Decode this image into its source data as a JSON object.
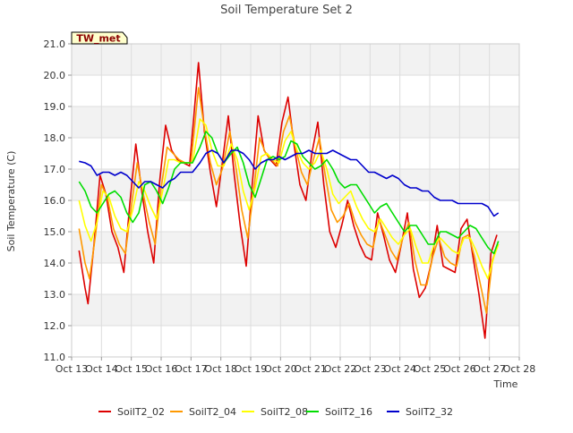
{
  "colors": {
    "background": "#ffffff",
    "band": "#f2f2f2",
    "grid": "#dddddd",
    "axis": "#cccccc",
    "station_tag_fill": "#ffffcc",
    "station_tag_text": "#8b0000"
  },
  "chart_data": {
    "type": "line",
    "title": "Soil Temperature Set 2",
    "xlabel": "Time",
    "ylabel": "Soil Temperature (C)",
    "station_tag": "TW_met",
    "xlim": [
      "Oct 13",
      "Oct 28"
    ],
    "ylim": [
      11.0,
      21.0
    ],
    "xticks": [
      "Oct 13",
      "Oct 14",
      "Oct 15",
      "Oct 16",
      "Oct 17",
      "Oct 18",
      "Oct 19",
      "Oct 20",
      "Oct 21",
      "Oct 22",
      "Oct 23",
      "Oct 24",
      "Oct 25",
      "Oct 26",
      "Oct 27",
      "Oct 28"
    ],
    "yticks": [
      "11.0",
      "12.0",
      "13.0",
      "14.0",
      "15.0",
      "16.0",
      "17.0",
      "18.0",
      "19.0",
      "20.0",
      "21.0"
    ],
    "grid": true,
    "legend_position": "bottom",
    "series": [
      {
        "name": "SoilT2_02",
        "color": "#dd0000",
        "x": [
          13.25,
          13.45,
          13.55,
          13.75,
          13.95,
          14.15,
          14.35,
          14.55,
          14.75,
          14.95,
          15.15,
          15.35,
          15.55,
          15.75,
          15.95,
          16.15,
          16.35,
          16.55,
          16.75,
          16.95,
          17.25,
          17.45,
          17.65,
          17.85,
          18.05,
          18.25,
          18.45,
          18.65,
          18.85,
          19.05,
          19.25,
          19.45,
          19.65,
          19.85,
          20.05,
          20.25,
          20.45,
          20.65,
          20.85,
          21.05,
          21.25,
          21.45,
          21.65,
          21.85,
          22.05,
          22.25,
          22.45,
          22.65,
          22.85,
          23.05,
          23.25,
          23.45,
          23.65,
          23.85,
          24.05,
          24.25,
          24.45,
          24.65,
          24.85,
          25.05,
          25.25,
          25.45,
          25.65,
          25.85,
          26.05,
          26.25,
          26.45,
          26.65,
          26.85,
          27.05,
          27.25
        ],
        "y": [
          14.4,
          13.2,
          12.7,
          14.6,
          16.8,
          16.2,
          15.0,
          14.5,
          13.7,
          15.9,
          17.8,
          16.3,
          15.0,
          14.0,
          16.6,
          18.4,
          17.6,
          17.3,
          17.2,
          17.1,
          20.4,
          18.2,
          16.9,
          15.8,
          17.2,
          18.7,
          16.8,
          15.2,
          13.9,
          16.5,
          18.7,
          17.6,
          17.3,
          17.1,
          18.5,
          19.3,
          17.8,
          16.5,
          16.0,
          17.5,
          18.5,
          16.5,
          15.0,
          14.5,
          15.2,
          16.0,
          15.2,
          14.6,
          14.2,
          14.1,
          15.6,
          14.9,
          14.1,
          13.7,
          14.6,
          15.6,
          13.8,
          12.9,
          13.2,
          14.0,
          15.2,
          13.9,
          13.8,
          13.7,
          15.1,
          15.4,
          14.2,
          13.0,
          11.6,
          14.3,
          14.9
        ]
      },
      {
        "name": "SoilT2_04",
        "color": "#ff9900",
        "x": [
          13.25,
          13.45,
          13.6,
          13.8,
          14.0,
          14.2,
          14.4,
          14.6,
          14.8,
          15.0,
          15.2,
          15.4,
          15.6,
          15.8,
          16.0,
          16.2,
          16.4,
          16.6,
          16.8,
          17.0,
          17.25,
          17.45,
          17.65,
          17.85,
          18.05,
          18.3,
          18.5,
          18.7,
          18.9,
          19.1,
          19.3,
          19.5,
          19.7,
          19.9,
          20.1,
          20.3,
          20.5,
          20.7,
          20.9,
          21.1,
          21.3,
          21.5,
          21.7,
          21.9,
          22.1,
          22.3,
          22.5,
          22.7,
          22.9,
          23.1,
          23.3,
          23.5,
          23.7,
          23.9,
          24.1,
          24.3,
          24.5,
          24.7,
          24.9,
          25.1,
          25.3,
          25.5,
          25.7,
          25.9,
          26.1,
          26.3,
          26.5,
          26.7,
          26.9,
          27.1,
          27.3
        ],
        "y": [
          15.1,
          14.0,
          13.5,
          14.9,
          16.5,
          16.1,
          15.1,
          14.6,
          14.3,
          15.8,
          17.2,
          16.2,
          15.3,
          14.6,
          16.4,
          17.7,
          17.5,
          17.3,
          17.2,
          17.2,
          19.6,
          18.3,
          17.2,
          16.5,
          17.0,
          18.2,
          17.1,
          15.7,
          14.8,
          16.3,
          18.0,
          17.5,
          17.3,
          17.1,
          18.2,
          18.7,
          17.7,
          16.9,
          16.5,
          17.3,
          18.0,
          16.8,
          15.7,
          15.3,
          15.5,
          15.9,
          15.3,
          14.9,
          14.6,
          14.5,
          15.4,
          14.9,
          14.4,
          14.1,
          14.8,
          15.3,
          14.1,
          13.3,
          13.3,
          14.2,
          14.8,
          14.2,
          14.0,
          13.9,
          14.8,
          14.9,
          14.2,
          13.3,
          12.4,
          14.1,
          14.6
        ]
      },
      {
        "name": "SoilT2_08",
        "color": "#ffff00",
        "x": [
          13.25,
          13.45,
          13.65,
          13.85,
          14.05,
          14.25,
          14.45,
          14.65,
          14.85,
          15.05,
          15.25,
          15.45,
          15.65,
          15.85,
          16.05,
          16.25,
          16.45,
          16.65,
          16.85,
          17.05,
          17.3,
          17.5,
          17.7,
          17.9,
          18.1,
          18.35,
          18.55,
          18.75,
          18.95,
          19.15,
          19.35,
          19.55,
          19.75,
          19.95,
          20.15,
          20.35,
          20.55,
          20.75,
          20.95,
          21.15,
          21.35,
          21.55,
          21.75,
          21.95,
          22.15,
          22.35,
          22.55,
          22.75,
          22.95,
          23.15,
          23.35,
          23.55,
          23.75,
          23.95,
          24.15,
          24.35,
          24.55,
          24.75,
          24.95,
          25.15,
          25.35,
          25.55,
          25.75,
          25.95,
          26.15,
          26.35,
          26.55,
          26.75,
          26.95,
          27.15,
          27.3
        ],
        "y": [
          16.0,
          15.2,
          14.7,
          15.3,
          16.3,
          16.1,
          15.5,
          15.1,
          15.0,
          15.7,
          16.6,
          16.3,
          15.8,
          15.4,
          16.3,
          17.3,
          17.3,
          17.2,
          17.2,
          17.2,
          18.6,
          18.4,
          17.6,
          17.1,
          17.1,
          17.8,
          17.3,
          16.3,
          15.7,
          16.4,
          17.4,
          17.5,
          17.3,
          17.2,
          17.9,
          18.2,
          17.6,
          17.2,
          17.0,
          17.2,
          17.6,
          17.0,
          16.2,
          15.9,
          16.1,
          16.3,
          15.8,
          15.4,
          15.1,
          15.0,
          15.4,
          15.1,
          14.8,
          14.6,
          14.9,
          15.1,
          14.5,
          14.0,
          14.0,
          14.6,
          14.8,
          14.6,
          14.4,
          14.3,
          14.8,
          14.8,
          14.4,
          13.9,
          13.5,
          14.2,
          14.6
        ]
      },
      {
        "name": "SoilT2_16",
        "color": "#00dd00",
        "x": [
          13.25,
          13.45,
          13.65,
          13.85,
          14.05,
          14.25,
          14.45,
          14.65,
          14.85,
          15.05,
          15.25,
          15.45,
          15.65,
          15.85,
          16.05,
          16.25,
          16.45,
          16.65,
          16.85,
          17.05,
          17.3,
          17.5,
          17.7,
          17.9,
          18.1,
          18.35,
          18.55,
          18.75,
          18.95,
          19.15,
          19.35,
          19.55,
          19.75,
          19.95,
          20.15,
          20.35,
          20.55,
          20.75,
          20.95,
          21.15,
          21.35,
          21.55,
          21.75,
          21.95,
          22.15,
          22.35,
          22.55,
          22.75,
          22.95,
          23.15,
          23.35,
          23.55,
          23.75,
          23.95,
          24.15,
          24.35,
          24.55,
          24.75,
          24.95,
          25.15,
          25.35,
          25.55,
          25.75,
          25.95,
          26.15,
          26.35,
          26.55,
          26.75,
          26.95,
          27.15,
          27.3
        ],
        "y": [
          16.6,
          16.3,
          15.8,
          15.6,
          15.9,
          16.2,
          16.3,
          16.1,
          15.6,
          15.3,
          15.6,
          16.5,
          16.6,
          16.3,
          15.9,
          16.4,
          17.0,
          17.2,
          17.2,
          17.2,
          17.7,
          18.2,
          18.0,
          17.5,
          17.2,
          17.5,
          17.7,
          17.2,
          16.5,
          16.1,
          16.7,
          17.3,
          17.4,
          17.3,
          17.4,
          17.9,
          17.8,
          17.4,
          17.2,
          17.0,
          17.1,
          17.3,
          17.0,
          16.6,
          16.4,
          16.5,
          16.5,
          16.2,
          15.9,
          15.6,
          15.8,
          15.9,
          15.6,
          15.3,
          15.0,
          15.2,
          15.2,
          14.9,
          14.6,
          14.6,
          15.0,
          15.0,
          14.9,
          14.8,
          15.0,
          15.2,
          15.1,
          14.8,
          14.5,
          14.3,
          14.7
        ]
      },
      {
        "name": "SoilT2_32",
        "color": "#0000cc",
        "x": [
          13.25,
          13.45,
          13.65,
          13.85,
          14.05,
          14.25,
          14.45,
          14.65,
          14.85,
          15.05,
          15.25,
          15.45,
          15.65,
          15.85,
          16.05,
          16.25,
          16.45,
          16.65,
          16.85,
          17.05,
          17.3,
          17.5,
          17.7,
          17.9,
          18.1,
          18.35,
          18.55,
          18.75,
          18.95,
          19.15,
          19.35,
          19.55,
          19.75,
          19.95,
          20.15,
          20.35,
          20.55,
          20.75,
          20.95,
          21.15,
          21.35,
          21.55,
          21.75,
          21.95,
          22.15,
          22.35,
          22.55,
          22.75,
          22.95,
          23.15,
          23.35,
          23.55,
          23.75,
          23.95,
          24.15,
          24.35,
          24.55,
          24.75,
          24.95,
          25.15,
          25.35,
          25.55,
          25.75,
          25.95,
          26.15,
          26.35,
          26.55,
          26.75,
          26.95,
          27.15,
          27.3
        ],
        "y": [
          17.25,
          17.2,
          17.1,
          16.8,
          16.9,
          16.9,
          16.8,
          16.9,
          16.8,
          16.6,
          16.4,
          16.6,
          16.6,
          16.5,
          16.4,
          16.6,
          16.7,
          16.9,
          16.9,
          16.9,
          17.2,
          17.5,
          17.6,
          17.5,
          17.2,
          17.6,
          17.6,
          17.5,
          17.3,
          17.0,
          17.2,
          17.3,
          17.3,
          17.4,
          17.3,
          17.4,
          17.5,
          17.5,
          17.6,
          17.5,
          17.5,
          17.5,
          17.6,
          17.5,
          17.4,
          17.3,
          17.3,
          17.1,
          16.9,
          16.9,
          16.8,
          16.7,
          16.8,
          16.7,
          16.5,
          16.4,
          16.4,
          16.3,
          16.3,
          16.1,
          16.0,
          16.0,
          16.0,
          15.9,
          15.9,
          15.9,
          15.9,
          15.9,
          15.8,
          15.5,
          15.6
        ]
      }
    ]
  }
}
